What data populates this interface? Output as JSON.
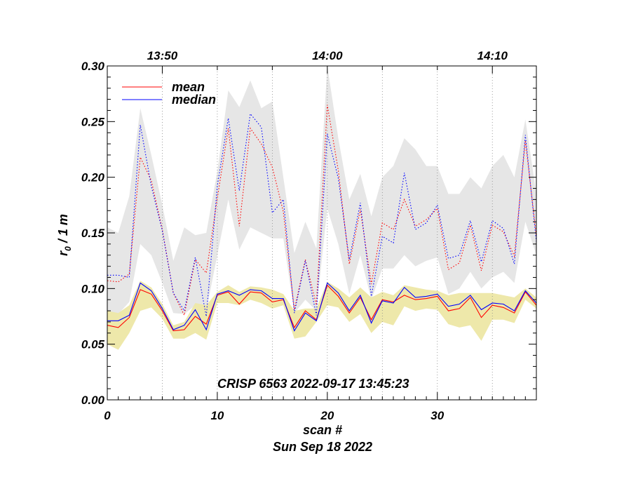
{
  "chart_data": {
    "type": "line",
    "xlabel": "scan #",
    "date_label": "Sun Sep 18 2022",
    "ylabel_main": "r",
    "ylabel_sub": "0",
    "ylabel_rest": " / 1 m",
    "annotation": "CRISP 6563 2022-09-17 13:45:23",
    "xlim": [
      0,
      39
    ],
    "ylim": [
      0,
      0.3
    ],
    "x_ticks": [
      0,
      10,
      20,
      30
    ],
    "x_minor_tick_step": 1,
    "y_ticks": [
      0.0,
      0.05,
      0.1,
      0.15,
      0.2,
      0.25,
      0.3
    ],
    "y_tick_labels": [
      "0.00",
      "0.05",
      "0.10",
      "0.15",
      "0.20",
      "0.25",
      "0.30"
    ],
    "top_axis": {
      "ticks": [
        {
          "x": 5,
          "label": "13:50"
        },
        {
          "x": 20,
          "label": "14:00"
        },
        {
          "x": 35,
          "label": "14:10"
        }
      ],
      "gridlines_x": [
        5,
        10,
        15,
        20,
        25,
        30,
        35
      ]
    },
    "x": [
      0,
      1,
      2,
      3,
      4,
      5,
      6,
      7,
      8,
      9,
      10,
      11,
      12,
      13,
      14,
      15,
      16,
      17,
      18,
      19,
      20,
      21,
      22,
      23,
      24,
      25,
      26,
      27,
      28,
      29,
      30,
      31,
      32,
      33,
      34,
      35,
      36,
      37,
      38,
      39
    ],
    "legend": [
      {
        "name": "mean",
        "color": "#ff0000"
      },
      {
        "name": "median",
        "color": "#0000ff"
      }
    ],
    "series": [
      {
        "name": "mean (low band)",
        "color": "#ff0000",
        "style": "solid",
        "values": [
          0.067,
          0.065,
          0.074,
          0.099,
          0.095,
          0.08,
          0.062,
          0.063,
          0.075,
          0.068,
          0.094,
          0.097,
          0.086,
          0.097,
          0.096,
          0.088,
          0.09,
          0.065,
          0.08,
          0.072,
          0.103,
          0.093,
          0.078,
          0.092,
          0.072,
          0.09,
          0.088,
          0.094,
          0.09,
          0.091,
          0.093,
          0.08,
          0.082,
          0.092,
          0.074,
          0.085,
          0.083,
          0.078,
          0.097,
          0.085
        ]
      },
      {
        "name": "median (low band)",
        "color": "#0000ff",
        "style": "solid",
        "values": [
          0.071,
          0.071,
          0.076,
          0.105,
          0.098,
          0.082,
          0.063,
          0.067,
          0.081,
          0.063,
          0.095,
          0.098,
          0.094,
          0.099,
          0.098,
          0.091,
          0.091,
          0.062,
          0.078,
          0.071,
          0.105,
          0.096,
          0.08,
          0.094,
          0.069,
          0.089,
          0.087,
          0.101,
          0.092,
          0.093,
          0.095,
          0.084,
          0.086,
          0.094,
          0.081,
          0.087,
          0.086,
          0.08,
          0.098,
          0.087
        ]
      },
      {
        "name": "mean (high band)",
        "color": "#ff0000",
        "style": "dotted",
        "values": [
          0.107,
          0.106,
          0.113,
          0.218,
          0.197,
          0.153,
          0.096,
          0.076,
          0.126,
          0.114,
          0.181,
          0.244,
          0.156,
          0.244,
          0.23,
          0.209,
          0.169,
          0.081,
          0.126,
          0.085,
          0.265,
          0.206,
          0.122,
          0.171,
          0.104,
          0.159,
          0.153,
          0.18,
          0.156,
          0.162,
          0.172,
          0.117,
          0.123,
          0.157,
          0.116,
          0.157,
          0.151,
          0.129,
          0.233,
          0.147
        ]
      },
      {
        "name": "median (high band)",
        "color": "#0000ff",
        "style": "dotted",
        "values": [
          0.112,
          0.112,
          0.11,
          0.247,
          0.192,
          0.152,
          0.096,
          0.08,
          0.128,
          0.075,
          0.192,
          0.253,
          0.188,
          0.257,
          0.245,
          0.168,
          0.18,
          0.078,
          0.125,
          0.076,
          0.239,
          0.199,
          0.126,
          0.177,
          0.093,
          0.147,
          0.141,
          0.204,
          0.153,
          0.159,
          0.175,
          0.127,
          0.13,
          0.161,
          0.124,
          0.161,
          0.154,
          0.122,
          0.238,
          0.142
        ]
      }
    ],
    "bands": [
      {
        "name": "high spread",
        "color": "#e6e6e6",
        "upper": [
          0.155,
          0.15,
          0.183,
          0.262,
          0.22,
          0.175,
          0.125,
          0.155,
          0.148,
          0.15,
          0.205,
          0.278,
          0.263,
          0.287,
          0.262,
          0.268,
          0.2,
          0.132,
          0.16,
          0.136,
          0.3,
          0.235,
          0.18,
          0.203,
          0.165,
          0.2,
          0.21,
          0.235,
          0.225,
          0.21,
          0.21,
          0.185,
          0.185,
          0.2,
          0.19,
          0.21,
          0.22,
          0.2,
          0.252,
          0.185
        ],
        "lower": [
          0.078,
          0.077,
          0.088,
          0.14,
          0.13,
          0.105,
          0.078,
          0.077,
          0.085,
          0.08,
          0.13,
          0.18,
          0.135,
          0.155,
          0.15,
          0.145,
          0.145,
          0.078,
          0.09,
          0.08,
          0.172,
          0.14,
          0.095,
          0.13,
          0.09,
          0.118,
          0.118,
          0.13,
          0.12,
          0.125,
          0.128,
          0.095,
          0.1,
          0.115,
          0.1,
          0.11,
          0.115,
          0.105,
          0.16,
          0.13
        ]
      },
      {
        "name": "low spread",
        "color": "#eee8aa",
        "upper": [
          0.08,
          0.078,
          0.085,
          0.107,
          0.101,
          0.086,
          0.067,
          0.07,
          0.087,
          0.085,
          0.097,
          0.103,
          0.097,
          0.102,
          0.101,
          0.099,
          0.095,
          0.08,
          0.082,
          0.082,
          0.106,
          0.1,
          0.092,
          0.101,
          0.092,
          0.097,
          0.094,
          0.103,
          0.101,
          0.099,
          0.098,
          0.094,
          0.096,
          0.096,
          0.096,
          0.096,
          0.094,
          0.092,
          0.1,
          0.092
        ]
      },
      {
        "name": "low spread lower",
        "color": "#eee8aa",
        "lower": [
          0.05,
          0.045,
          0.06,
          0.08,
          0.083,
          0.073,
          0.055,
          0.055,
          0.06,
          0.054,
          0.087,
          0.087,
          0.085,
          0.09,
          0.087,
          0.082,
          0.085,
          0.055,
          0.057,
          0.07,
          0.085,
          0.083,
          0.07,
          0.077,
          0.06,
          0.07,
          0.067,
          0.084,
          0.08,
          0.082,
          0.081,
          0.068,
          0.065,
          0.067,
          0.053,
          0.072,
          0.072,
          0.069,
          0.09,
          0.082
        ]
      }
    ]
  }
}
